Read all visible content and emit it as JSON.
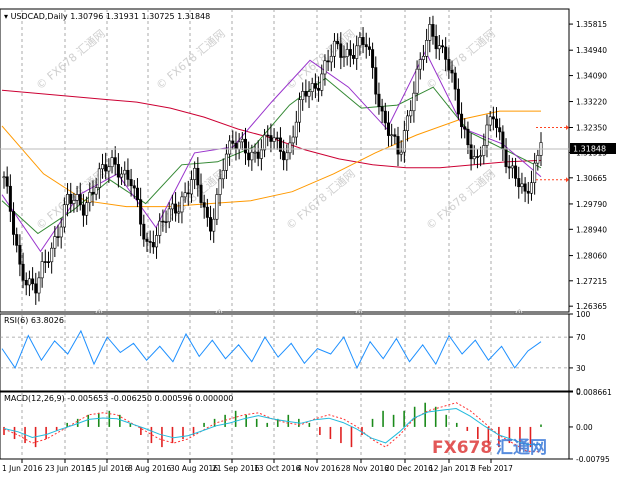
{
  "chart_data": [
    {
      "type": "candlestick",
      "title": "USDCAD,Daily",
      "ohlc": [
        "1.30796",
        "1.31931",
        "1.30725",
        "1.31848"
      ],
      "last_price": "1.31848",
      "ylim": [
        1.2617,
        1.3632
      ],
      "y_ticks": [
        "1.35815",
        "1.34940",
        "1.34090",
        "1.33220",
        "1.32350",
        "1.31515",
        "1.30665",
        "1.29790",
        "1.28940",
        "1.28060",
        "1.27215",
        "1.26365"
      ],
      "x_ticks": [
        "1 Jun 2016",
        "23 Jun 2016",
        "15 Jul 2016",
        "8 Aug 2016",
        "30 Aug 2016",
        "21 Sep 2016",
        "13 Oct 2016",
        "4 Nov 2016",
        "28 Nov 2016",
        "20 Dec 2016",
        "12 Jan 2017",
        "3 Feb 2017"
      ],
      "price_series": [
        {
          "date": "1 Jun 2016",
          "close": 1.307
        },
        {
          "date": "10 Jun 2016",
          "close": 1.276
        },
        {
          "date": "16 Jun 2016",
          "close": 1.27
        },
        {
          "date": "23 Jun 2016",
          "close": 1.282
        },
        {
          "date": "1 Jul 2016",
          "close": 1.3
        },
        {
          "date": "8 Jul 2016",
          "close": 1.296
        },
        {
          "date": "15 Jul 2016",
          "close": 1.308
        },
        {
          "date": "22 Jul 2016",
          "close": 1.311
        },
        {
          "date": "1 Aug 2016",
          "close": 1.307
        },
        {
          "date": "8 Aug 2016",
          "close": 1.283
        },
        {
          "date": "16 Aug 2016",
          "close": 1.292
        },
        {
          "date": "23 Aug 2016",
          "close": 1.296
        },
        {
          "date": "30 Aug 2016",
          "close": 1.309
        },
        {
          "date": "7 Sep 2016",
          "close": 1.288
        },
        {
          "date": "14 Sep 2016",
          "close": 1.315
        },
        {
          "date": "21 Sep 2016",
          "close": 1.318
        },
        {
          "date": "28 Sep 2016",
          "close": 1.314
        },
        {
          "date": "6 Oct 2016",
          "close": 1.321
        },
        {
          "date": "13 Oct 2016",
          "close": 1.314
        },
        {
          "date": "21 Oct 2016",
          "close": 1.336
        },
        {
          "date": "28 Oct 2016",
          "close": 1.339
        },
        {
          "date": "4 Nov 2016",
          "close": 1.351
        },
        {
          "date": "11 Nov 2016",
          "close": 1.348
        },
        {
          "date": "18 Nov 2016",
          "close": 1.352
        },
        {
          "date": "28 Nov 2016",
          "close": 1.326
        },
        {
          "date": "5 Dec 2016",
          "close": 1.314
        },
        {
          "date": "12 Dec 2016",
          "close": 1.338
        },
        {
          "date": "20 Dec 2016",
          "close": 1.356
        },
        {
          "date": "28 Dec 2016",
          "close": 1.348
        },
        {
          "date": "5 Jan 2017",
          "close": 1.323
        },
        {
          "date": "12 Jan 2017",
          "close": 1.312
        },
        {
          "date": "19 Jan 2017",
          "close": 1.328
        },
        {
          "date": "26 Jan 2017",
          "close": 1.31
        },
        {
          "date": "3 Feb 2017",
          "close": 1.3
        },
        {
          "date": "8 Feb 2017",
          "close": 1.3185
        }
      ],
      "moving_averages": [
        {
          "color": "#cc0033",
          "values": [
            1.336,
            1.335,
            1.334,
            1.333,
            1.332,
            1.33,
            1.327,
            1.323,
            1.32,
            1.316,
            1.313,
            1.311,
            1.31,
            1.31,
            1.311,
            1.312,
            1.3125
          ]
        },
        {
          "color": "#ff9900",
          "values": [
            1.324,
            1.308,
            1.299,
            1.297,
            1.297,
            1.298,
            1.299,
            1.302,
            1.308,
            1.315,
            1.321,
            1.326,
            1.329,
            1.329
          ]
        },
        {
          "color": "#338833",
          "values": [
            1.299,
            1.288,
            1.296,
            1.306,
            1.298,
            1.311,
            1.312,
            1.317,
            1.331,
            1.34,
            1.33,
            1.331,
            1.337,
            1.322,
            1.316,
            1.31
          ]
        },
        {
          "color": "#9933cc",
          "values": [
            1.301,
            1.282,
            1.301,
            1.308,
            1.29,
            1.315,
            1.317,
            1.332,
            1.346,
            1.337,
            1.323,
            1.349,
            1.323,
            1.318,
            1.307
          ]
        }
      ],
      "dotted_levels": [
        {
          "value": 1.3235,
          "color": "#ff4422"
        },
        {
          "value": 1.306,
          "color": "#ff4422"
        }
      ],
      "watermark": "FX678 汇通网",
      "grid": true
    },
    {
      "type": "line",
      "title": "RSI(6) 63.8026",
      "ylim": [
        0,
        100
      ],
      "y_ticks": [
        "100",
        "70",
        "30",
        "0"
      ],
      "series": [
        {
          "values": [
            55,
            30,
            72,
            40,
            65,
            48,
            78,
            35,
            70,
            50,
            62,
            40,
            58,
            38,
            74,
            45,
            66,
            42,
            60,
            38,
            70,
            44,
            62,
            36,
            55,
            48,
            70,
            30,
            64,
            42,
            68,
            38,
            60,
            35,
            72,
            48,
            66,
            40,
            58,
            30,
            52,
            64
          ]
        }
      ],
      "line_color": "#1e90ff",
      "levels": [
        30,
        70
      ]
    },
    {
      "type": "bar",
      "title": "MACD(12,26,9) -0.005653 -0.006250 0.000596 0.000000",
      "ylim": [
        -0.00795,
        0.008661
      ],
      "y_ticks": [
        "0.008661",
        "0.00",
        "-0.00795"
      ],
      "histogram": [
        -0.002,
        -0.003,
        -0.004,
        -0.005,
        -0.003,
        -0.001,
        0.001,
        0.002,
        0.003,
        0.0035,
        0.004,
        0.003,
        0.001,
        -0.002,
        -0.004,
        -0.005,
        -0.004,
        -0.003,
        -0.002,
        0.001,
        0.002,
        0.003,
        0.004,
        0.003,
        0.002,
        0.001,
        0.002,
        0.003,
        0.002,
        0.001,
        -0.002,
        -0.003,
        -0.004,
        -0.005,
        -0.002,
        0.002,
        0.004,
        0.003,
        0.004,
        0.005,
        0.006,
        0.005,
        0.003,
        0.001,
        -0.001,
        -0.003,
        -0.004,
        -0.005,
        -0.004,
        -0.006,
        -0.005,
        0.0006
      ],
      "signal": [
        -0.0005,
        -0.002,
        -0.004,
        -0.003,
        -0.001,
        0.001,
        0.003,
        0.0035,
        0.003,
        0.001,
        -0.001,
        -0.003,
        -0.004,
        -0.003,
        -0.001,
        0.001,
        0.002,
        0.003,
        0.0035,
        0.002,
        0.001,
        0.0005,
        0.002,
        0.003,
        0.002,
        0.0,
        -0.003,
        -0.005,
        -0.002,
        0.002,
        0.004,
        0.005,
        0.006,
        0.004,
        0.001,
        -0.002,
        -0.004,
        -0.006,
        -0.0062
      ],
      "hist_colors": {
        "up": "#1a8a1a",
        "down": "#e02020"
      },
      "signal_color": "#ff3333",
      "macd_line_color": "#22bbdd"
    }
  ]
}
